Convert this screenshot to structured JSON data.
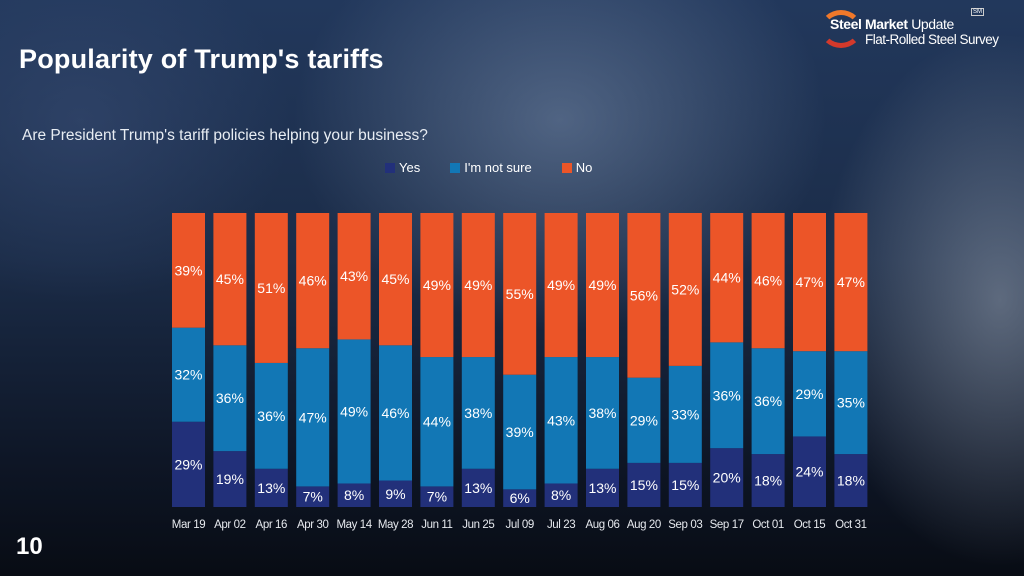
{
  "page": {
    "title": "Popularity of Trump's tariffs",
    "page_number": "10",
    "logo": {
      "line1_bold": "Steel Market",
      "line1_light": "Update",
      "line2": "Flat-Rolled Steel Survey",
      "mark": "SM"
    }
  },
  "colors": {
    "yes": "#22307a",
    "not_sure": "#1277b5",
    "no": "#ec5528"
  },
  "chart_data": {
    "type": "bar",
    "stacked": true,
    "normalized": true,
    "title": "Are President Trump's tariff policies helping your business?",
    "xlabel": "",
    "ylabel": "",
    "ylim": [
      0,
      100
    ],
    "grid": false,
    "legend_position": "top-center",
    "categories": [
      "Mar 19",
      "Apr 02",
      "Apr 16",
      "Apr 30",
      "May 14",
      "May 28",
      "Jun 11",
      "Jun 25",
      "Jul 09",
      "Jul 23",
      "Aug 06",
      "Aug 20",
      "Sep 03",
      "Sep 17",
      "Oct 01",
      "Oct 15",
      "Oct 31"
    ],
    "series": [
      {
        "name": "Yes",
        "values": [
          29,
          19,
          13,
          7,
          8,
          9,
          7,
          13,
          6,
          8,
          13,
          15,
          15,
          20,
          18,
          24,
          18
        ]
      },
      {
        "name": "I'm not sure",
        "values": [
          32,
          36,
          36,
          47,
          49,
          46,
          44,
          38,
          39,
          43,
          38,
          29,
          33,
          36,
          36,
          29,
          35
        ]
      },
      {
        "name": "No",
        "values": [
          39,
          45,
          51,
          46,
          43,
          45,
          49,
          49,
          55,
          49,
          49,
          56,
          52,
          44,
          46,
          47,
          47
        ]
      }
    ],
    "value_suffix": "%"
  }
}
